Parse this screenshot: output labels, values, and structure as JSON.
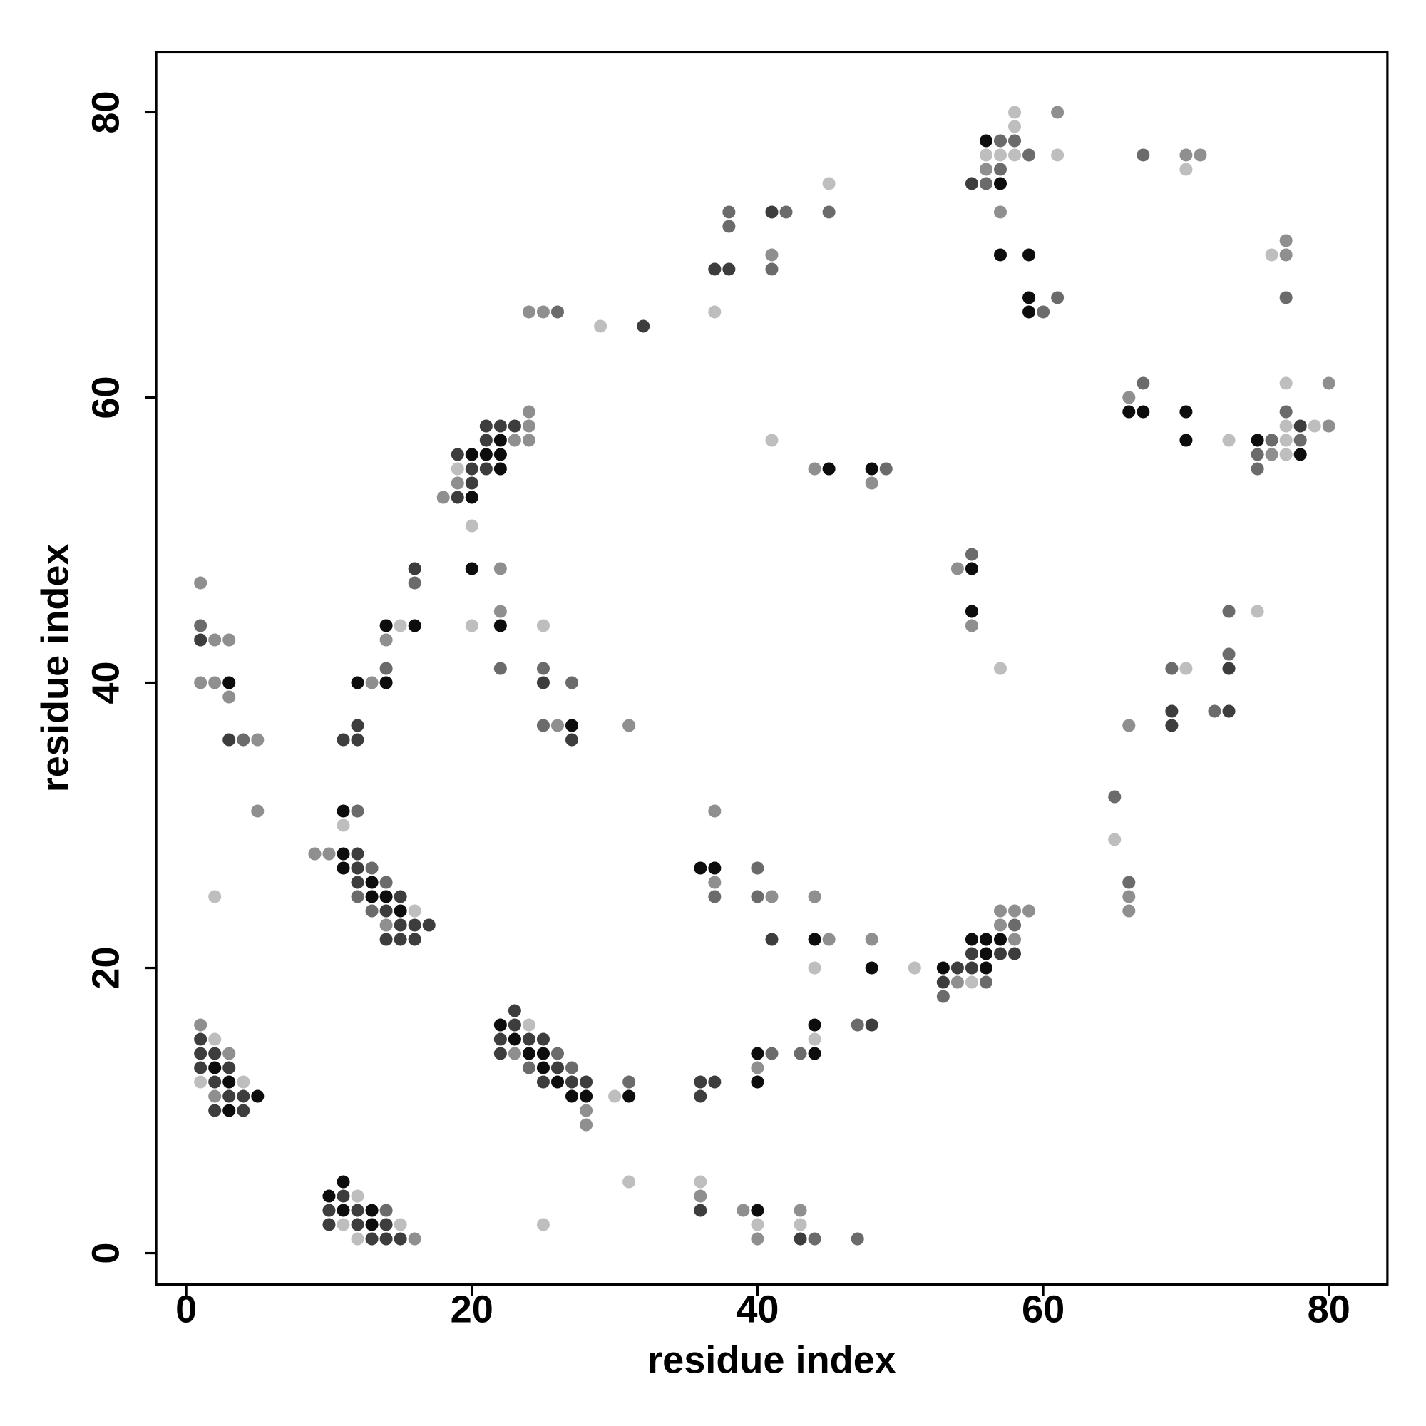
{
  "chart_data": {
    "type": "scatter",
    "xlabel": "residue index",
    "ylabel": "residue index",
    "xlim": [
      -2.1,
      84.1
    ],
    "ylim": [
      -2.2,
      84.2
    ],
    "xticks": [
      0,
      20,
      40,
      60,
      80
    ],
    "yticks": [
      0,
      20,
      40,
      60,
      80
    ],
    "x": [
      11,
      10,
      11,
      12,
      10,
      11,
      12,
      13,
      14,
      10,
      11,
      12,
      13,
      14,
      15,
      12,
      13,
      14,
      15,
      16,
      25,
      31,
      36,
      36,
      36,
      39,
      40,
      40,
      40,
      43,
      43,
      43,
      44,
      47,
      1,
      1,
      2,
      1,
      2,
      3,
      1,
      2,
      3,
      1,
      2,
      3,
      4,
      2,
      3,
      4,
      5,
      2,
      3,
      4,
      23,
      22,
      23,
      24,
      22,
      23,
      24,
      25,
      22,
      23,
      24,
      25,
      26,
      24,
      25,
      26,
      27,
      25,
      26,
      27,
      28,
      27,
      28,
      28,
      28,
      30,
      31,
      31,
      36,
      36,
      37,
      40,
      40,
      40,
      41,
      43,
      44,
      44,
      44,
      47,
      48,
      40,
      40,
      41,
      41,
      44,
      44,
      45,
      44,
      48,
      48,
      51,
      36,
      37,
      37,
      37,
      37,
      57,
      58,
      59,
      57,
      58,
      55,
      56,
      57,
      58,
      55,
      56,
      57,
      58,
      53,
      54,
      55,
      56,
      53,
      54,
      55,
      56,
      53,
      9,
      10,
      11,
      12,
      11,
      12,
      13,
      12,
      13,
      14,
      12,
      13,
      14,
      15,
      13,
      14,
      15,
      16,
      14,
      15,
      16,
      17,
      14,
      15,
      16,
      11,
      12,
      11,
      2,
      5,
      11,
      12,
      12,
      12,
      13,
      14,
      14,
      14,
      14,
      15,
      16,
      16,
      16,
      3,
      4,
      5,
      1,
      2,
      3,
      3,
      1,
      2,
      3,
      1,
      1,
      24,
      21,
      22,
      23,
      24,
      21,
      22,
      23,
      24,
      19,
      20,
      21,
      22,
      19,
      20,
      21,
      22,
      19,
      20,
      18,
      19,
      20,
      20,
      20,
      22,
      20,
      22,
      22,
      22,
      25,
      25,
      25,
      27,
      25,
      26,
      27,
      27,
      31,
      24,
      25,
      26,
      29,
      32,
      37,
      37,
      38,
      38,
      38,
      41,
      41,
      41,
      42,
      45,
      45,
      41,
      44,
      45,
      48,
      49,
      48,
      54,
      55,
      55,
      55,
      55,
      57,
      58,
      61,
      58,
      56,
      57,
      58,
      56,
      57,
      58,
      59,
      61,
      56,
      57,
      55,
      56,
      57,
      57,
      57,
      59,
      59,
      61,
      59,
      60,
      67,
      70,
      71,
      70,
      76,
      77,
      77,
      77,
      66,
      66,
      67,
      67,
      70,
      70,
      73,
      80,
      77,
      77,
      75,
      76,
      77,
      78,
      77,
      78,
      79,
      80,
      75,
      76,
      77,
      78,
      75,
      73,
      75,
      73,
      73,
      69,
      70,
      69,
      69,
      72,
      73,
      66,
      65,
      65,
      66,
      66,
      66
    ],
    "y": [
      5,
      4,
      4,
      4,
      3,
      3,
      3,
      3,
      3,
      2,
      2,
      2,
      2,
      2,
      2,
      1,
      1,
      1,
      1,
      1,
      2,
      5,
      5,
      4,
      3,
      3,
      3,
      2,
      1,
      3,
      2,
      1,
      1,
      1,
      16,
      15,
      15,
      14,
      14,
      14,
      13,
      13,
      13,
      12,
      12,
      12,
      12,
      11,
      11,
      11,
      11,
      10,
      10,
      10,
      17,
      16,
      16,
      16,
      15,
      15,
      15,
      15,
      14,
      14,
      14,
      14,
      14,
      13,
      13,
      13,
      13,
      12,
      12,
      12,
      12,
      11,
      11,
      10,
      9,
      11,
      11,
      12,
      12,
      11,
      12,
      14,
      13,
      12,
      14,
      14,
      14,
      15,
      16,
      16,
      16,
      27,
      25,
      25,
      22,
      25,
      22,
      22,
      20,
      22,
      20,
      20,
      27,
      27,
      26,
      25,
      31,
      24,
      24,
      24,
      23,
      23,
      22,
      22,
      22,
      22,
      21,
      21,
      21,
      21,
      20,
      20,
      20,
      20,
      19,
      19,
      19,
      19,
      18,
      28,
      28,
      28,
      28,
      27,
      27,
      27,
      26,
      26,
      26,
      25,
      25,
      25,
      25,
      24,
      24,
      24,
      24,
      23,
      23,
      23,
      23,
      22,
      22,
      22,
      31,
      31,
      30,
      25,
      31,
      36,
      36,
      37,
      40,
      40,
      40,
      41,
      43,
      44,
      44,
      44,
      47,
      48,
      36,
      36,
      36,
      40,
      40,
      40,
      39,
      43,
      43,
      43,
      44,
      47,
      59,
      58,
      58,
      58,
      58,
      57,
      57,
      57,
      57,
      56,
      56,
      56,
      56,
      55,
      55,
      55,
      55,
      54,
      54,
      53,
      53,
      53,
      51,
      48,
      48,
      44,
      45,
      44,
      41,
      44,
      41,
      40,
      40,
      37,
      37,
      37,
      36,
      37,
      66,
      66,
      66,
      65,
      65,
      66,
      69,
      69,
      72,
      73,
      70,
      69,
      73,
      73,
      73,
      75,
      57,
      55,
      55,
      55,
      55,
      54,
      48,
      48,
      49,
      45,
      44,
      41,
      80,
      80,
      79,
      78,
      78,
      78,
      77,
      77,
      77,
      77,
      77,
      76,
      76,
      75,
      75,
      75,
      73,
      70,
      70,
      67,
      67,
      66,
      66,
      77,
      77,
      77,
      76,
      70,
      70,
      71,
      67,
      60,
      59,
      59,
      61,
      59,
      57,
      57,
      61,
      61,
      59,
      57,
      57,
      57,
      57,
      58,
      58,
      58,
      58,
      56,
      56,
      56,
      56,
      55,
      45,
      45,
      42,
      41,
      41,
      41,
      38,
      37,
      38,
      38,
      37,
      32,
      29,
      26,
      25,
      24
    ],
    "colors": [
      "#0d0d0d",
      "#0d0d0d",
      "#3d3d3d",
      "#bebebe",
      "#3d3d3d",
      "#0d0d0d",
      "#3d3d3d",
      "#0d0d0d",
      "#6b6b6b",
      "#3d3d3d",
      "#bebebe",
      "#3d3d3d",
      "#0d0d0d",
      "#3d3d3d",
      "#bebebe",
      "#bebebe",
      "#3d3d3d",
      "#3d3d3d",
      "#3d3d3d",
      "#8f8f8f",
      "#bebebe",
      "#bebebe",
      "#bebebe",
      "#8f8f8f",
      "#3d3d3d",
      "#8f8f8f",
      "#0d0d0d",
      "#bebebe",
      "#8f8f8f",
      "#8f8f8f",
      "#bebebe",
      "#3d3d3d",
      "#6b6b6b",
      "#6b6b6b",
      "#8f8f8f",
      "#3d3d3d",
      "#bebebe",
      "#3d3d3d",
      "#3d3d3d",
      "#8f8f8f",
      "#3d3d3d",
      "#0d0d0d",
      "#3d3d3d",
      "#bebebe",
      "#3d3d3d",
      "#0d0d0d",
      "#bebebe",
      "#8f8f8f",
      "#3d3d3d",
      "#3d3d3d",
      "#0d0d0d",
      "#3d3d3d",
      "#0d0d0d",
      "#3d3d3d",
      "#3d3d3d",
      "#0d0d0d",
      "#3d3d3d",
      "#bebebe",
      "#3d3d3d",
      "#0d0d0d",
      "#3d3d3d",
      "#3d3d3d",
      "#3d3d3d",
      "#8f8f8f",
      "#0d0d0d",
      "#0d0d0d",
      "#6b6b6b",
      "#6b6b6b",
      "#0d0d0d",
      "#3d3d3d",
      "#6b6b6b",
      "#3d3d3d",
      "#0d0d0d",
      "#3d3d3d",
      "#3d3d3d",
      "#0d0d0d",
      "#0d0d0d",
      "#8f8f8f",
      "#8f8f8f",
      "#bebebe",
      "#0d0d0d",
      "#6b6b6b",
      "#3d3d3d",
      "#3d3d3d",
      "#3d3d3d",
      "#0d0d0d",
      "#8f8f8f",
      "#0d0d0d",
      "#6b6b6b",
      "#6b6b6b",
      "#0d0d0d",
      "#bebebe",
      "#0d0d0d",
      "#6b6b6b",
      "#3d3d3d",
      "#6b6b6b",
      "#6b6b6b",
      "#8f8f8f",
      "#3d3d3d",
      "#8f8f8f",
      "#0d0d0d",
      "#8f8f8f",
      "#bebebe",
      "#8f8f8f",
      "#0d0d0d",
      "#bebebe",
      "#0d0d0d",
      "#0d0d0d",
      "#8f8f8f",
      "#6b6b6b",
      "#8f8f8f",
      "#8f8f8f",
      "#8f8f8f",
      "#8f8f8f",
      "#8f8f8f",
      "#6b6b6b",
      "#0d0d0d",
      "#0d0d0d",
      "#0d0d0d",
      "#8f8f8f",
      "#3d3d3d",
      "#0d0d0d",
      "#3d3d3d",
      "#3d3d3d",
      "#0d0d0d",
      "#3d3d3d",
      "#3d3d3d",
      "#0d0d0d",
      "#3d3d3d",
      "#8f8f8f",
      "#bebebe",
      "#6b6b6b",
      "#6b6b6b",
      "#8f8f8f",
      "#8f8f8f",
      "#0d0d0d",
      "#3d3d3d",
      "#0d0d0d",
      "#3d3d3d",
      "#6b6b6b",
      "#3d3d3d",
      "#0d0d0d",
      "#6b6b6b",
      "#6b6b6b",
      "#0d0d0d",
      "#0d0d0d",
      "#3d3d3d",
      "#6b6b6b",
      "#3d3d3d",
      "#0d0d0d",
      "#bebebe",
      "#8f8f8f",
      "#3d3d3d",
      "#3d3d3d",
      "#3d3d3d",
      "#3d3d3d",
      "#3d3d3d",
      "#3d3d3d",
      "#0d0d0d",
      "#6b6b6b",
      "#bebebe",
      "#bebebe",
      "#8f8f8f",
      "#3d3d3d",
      "#3d3d3d",
      "#3d3d3d",
      "#0d0d0d",
      "#8f8f8f",
      "#0d0d0d",
      "#6b6b6b",
      "#8f8f8f",
      "#0d0d0d",
      "#bebebe",
      "#0d0d0d",
      "#6b6b6b",
      "#3d3d3d",
      "#3d3d3d",
      "#6b6b6b",
      "#8f8f8f",
      "#8f8f8f",
      "#8f8f8f",
      "#0d0d0d",
      "#8f8f8f",
      "#3d3d3d",
      "#8f8f8f",
      "#8f8f8f",
      "#6b6b6b",
      "#8f8f8f",
      "#8f8f8f",
      "#3d3d3d",
      "#3d3d3d",
      "#3d3d3d",
      "#8f8f8f",
      "#3d3d3d",
      "#0d0d0d",
      "#8f8f8f",
      "#8f8f8f",
      "#3d3d3d",
      "#0d0d0d",
      "#0d0d0d",
      "#0d0d0d",
      "#bebebe",
      "#3d3d3d",
      "#3d3d3d",
      "#0d0d0d",
      "#8f8f8f",
      "#3d3d3d",
      "#8f8f8f",
      "#3d3d3d",
      "#0d0d0d",
      "#bebebe",
      "#0d0d0d",
      "#8f8f8f",
      "#bebebe",
      "#8f8f8f",
      "#0d0d0d",
      "#6b6b6b",
      "#bebebe",
      "#6b6b6b",
      "#3d3d3d",
      "#6b6b6b",
      "#6b6b6b",
      "#8f8f8f",
      "#0d0d0d",
      "#3d3d3d",
      "#8f8f8f",
      "#8f8f8f",
      "#8f8f8f",
      "#6b6b6b",
      "#bebebe",
      "#3d3d3d",
      "#bebebe",
      "#3d3d3d",
      "#3d3d3d",
      "#6b6b6b",
      "#6b6b6b",
      "#8f8f8f",
      "#6b6b6b",
      "#3d3d3d",
      "#6b6b6b",
      "#6b6b6b",
      "#bebebe",
      "#bebebe",
      "#8f8f8f",
      "#0d0d0d",
      "#0d0d0d",
      "#6b6b6b",
      "#8f8f8f",
      "#8f8f8f",
      "#0d0d0d",
      "#6b6b6b",
      "#0d0d0d",
      "#8f8f8f",
      "#bebebe",
      "#bebebe",
      "#8f8f8f",
      "#bebebe",
      "#0d0d0d",
      "#6b6b6b",
      "#6b6b6b",
      "#bebebe",
      "#bebebe",
      "#bebebe",
      "#6b6b6b",
      "#bebebe",
      "#8f8f8f",
      "#6b6b6b",
      "#3d3d3d",
      "#6b6b6b",
      "#0d0d0d",
      "#8f8f8f",
      "#0d0d0d",
      "#0d0d0d",
      "#0d0d0d",
      "#6b6b6b",
      "#0d0d0d",
      "#6b6b6b",
      "#6b6b6b",
      "#8f8f8f",
      "#8f8f8f",
      "#bebebe",
      "#bebebe",
      "#8f8f8f",
      "#8f8f8f",
      "#6b6b6b",
      "#8f8f8f",
      "#0d0d0d",
      "#0d0d0d",
      "#6b6b6b",
      "#0d0d0d",
      "#0d0d0d",
      "#bebebe",
      "#8f8f8f",
      "#bebebe",
      "#6b6b6b",
      "#0d0d0d",
      "#6b6b6b",
      "#bebebe",
      "#6b6b6b",
      "#bebebe",
      "#3d3d3d",
      "#bebebe",
      "#8f8f8f",
      "#6b6b6b",
      "#8f8f8f",
      "#bebebe",
      "#0d0d0d",
      "#6b6b6b",
      "#6b6b6b",
      "#bebebe",
      "#6b6b6b",
      "#3d3d3d",
      "#6b6b6b",
      "#bebebe",
      "#3d3d3d",
      "#3d3d3d",
      "#6b6b6b",
      "#3d3d3d",
      "#8f8f8f",
      "#6b6b6b",
      "#bebebe",
      "#6b6b6b",
      "#8f8f8f",
      "#8f8f8f"
    ]
  }
}
